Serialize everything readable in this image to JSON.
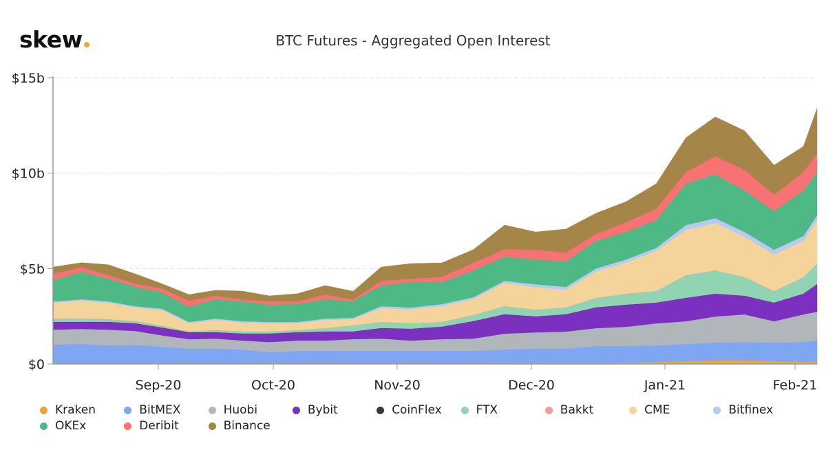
{
  "logo": {
    "text": "skew",
    "dot_color": "#e8a838"
  },
  "chart_data": {
    "type": "area",
    "stacked": true,
    "title": "BTC Futures - Aggregated Open Interest",
    "xlabel": "",
    "ylabel": "",
    "ylim": [
      0,
      15
    ],
    "y_unit": "$b",
    "y_ticks": [
      {
        "value": 0,
        "label": "$0"
      },
      {
        "value": 5,
        "label": "$5b"
      },
      {
        "value": 10,
        "label": "$10b"
      },
      {
        "value": 15,
        "label": "$15b"
      }
    ],
    "x_ticks": [
      {
        "date": "2020-09-01",
        "label": "Sep-20"
      },
      {
        "date": "2020-10-01",
        "label": "Oct-20"
      },
      {
        "date": "2020-11-01",
        "label": "Nov-20"
      },
      {
        "date": "2020-12-01",
        "label": "Dec-20"
      },
      {
        "date": "2021-01-01",
        "label": "Jan-21"
      },
      {
        "date": "2021-02-01",
        "label": "Feb-21"
      }
    ],
    "grid": "horizontal dashed",
    "legend_position": "bottom",
    "x": [
      "2020-08-05",
      "2020-08-12",
      "2020-08-19",
      "2020-08-26",
      "2020-09-02",
      "2020-09-09",
      "2020-09-16",
      "2020-09-23",
      "2020-09-30",
      "2020-10-07",
      "2020-10-14",
      "2020-10-21",
      "2020-10-28",
      "2020-11-04",
      "2020-11-11",
      "2020-11-18",
      "2020-11-25",
      "2020-12-02",
      "2020-12-09",
      "2020-12-16",
      "2020-12-23",
      "2020-12-30",
      "2021-01-06",
      "2021-01-13",
      "2021-01-20",
      "2021-01-27",
      "2021-02-03",
      "2021-02-06"
    ],
    "series": [
      {
        "name": "Kraken",
        "color": "#e8a838",
        "values": [
          0.04,
          0.04,
          0.04,
          0.04,
          0.04,
          0.04,
          0.04,
          0.04,
          0.04,
          0.04,
          0.04,
          0.04,
          0.04,
          0.04,
          0.04,
          0.04,
          0.05,
          0.05,
          0.06,
          0.06,
          0.08,
          0.1,
          0.15,
          0.2,
          0.2,
          0.15,
          0.12,
          0.13
        ]
      },
      {
        "name": "BitMEX",
        "color": "#7ea6f2",
        "values": [
          0.97,
          1.01,
          0.93,
          0.97,
          0.86,
          0.76,
          0.76,
          0.72,
          0.57,
          0.65,
          0.65,
          0.65,
          0.65,
          0.65,
          0.65,
          0.65,
          0.71,
          0.75,
          0.74,
          0.88,
          0.86,
          0.87,
          0.9,
          0.92,
          0.95,
          0.97,
          1.03,
          1.1
        ]
      },
      {
        "name": "Huobi",
        "color": "#b0b6ba",
        "values": [
          0.79,
          0.79,
          0.83,
          0.72,
          0.6,
          0.5,
          0.53,
          0.47,
          0.54,
          0.54,
          0.54,
          0.61,
          0.64,
          0.54,
          0.61,
          0.64,
          0.83,
          0.86,
          0.9,
          0.94,
          1.01,
          1.16,
          1.19,
          1.37,
          1.45,
          1.12,
          1.45,
          1.51
        ]
      },
      {
        "name": "Bybit",
        "color": "#7b30c0",
        "values": [
          0.4,
          0.36,
          0.4,
          0.4,
          0.4,
          0.36,
          0.33,
          0.36,
          0.44,
          0.43,
          0.47,
          0.4,
          0.55,
          0.61,
          0.65,
          0.91,
          1.01,
          0.83,
          0.9,
          1.08,
          1.15,
          1.08,
          1.22,
          1.19,
          0.97,
          0.97,
          1.08,
          1.44
        ]
      },
      {
        "name": "CoinFlex",
        "color": "#343a40",
        "values": [
          0.01,
          0.01,
          0.01,
          0.01,
          0.01,
          0.01,
          0.01,
          0.01,
          0.01,
          0.01,
          0.01,
          0.01,
          0.01,
          0.01,
          0.01,
          0.01,
          0.01,
          0.01,
          0.01,
          0.01,
          0.01,
          0.01,
          0.01,
          0.01,
          0.01,
          0.01,
          0.01,
          0.01
        ]
      },
      {
        "name": "FTX",
        "color": "#90d4b3",
        "values": [
          0.17,
          0.17,
          0.13,
          0.1,
          0.09,
          0.03,
          0.1,
          0.1,
          0.1,
          0.1,
          0.17,
          0.31,
          0.31,
          0.28,
          0.24,
          0.31,
          0.42,
          0.35,
          0.35,
          0.49,
          0.57,
          0.6,
          1.18,
          1.21,
          0.96,
          0.6,
          0.85,
          1.07
        ]
      },
      {
        "name": "Bakkt",
        "color": "#f59a9a",
        "values": [
          0.01,
          0.01,
          0.01,
          0.01,
          0.01,
          0.01,
          0.01,
          0.01,
          0.01,
          0.01,
          0.01,
          0.01,
          0.01,
          0.01,
          0.01,
          0.01,
          0.01,
          0.01,
          0.01,
          0.01,
          0.01,
          0.01,
          0.01,
          0.01,
          0.01,
          0.01,
          0.01,
          0.01
        ]
      },
      {
        "name": "CME",
        "color": "#f5d49b",
        "values": [
          0.82,
          0.93,
          0.86,
          0.71,
          0.82,
          0.42,
          0.53,
          0.46,
          0.42,
          0.35,
          0.42,
          0.32,
          0.72,
          0.72,
          0.83,
          0.83,
          1.22,
          1.17,
          0.92,
          1.39,
          1.64,
          2.11,
          2.37,
          2.48,
          2.12,
          1.91,
          1.91,
          2.27
        ]
      },
      {
        "name": "Bitfinex",
        "color": "#b3cbf5",
        "values": [
          0.07,
          0.07,
          0.07,
          0.07,
          0.07,
          0.07,
          0.07,
          0.07,
          0.07,
          0.07,
          0.07,
          0.07,
          0.1,
          0.1,
          0.1,
          0.1,
          0.1,
          0.15,
          0.15,
          0.15,
          0.15,
          0.15,
          0.25,
          0.25,
          0.25,
          0.25,
          0.25,
          0.25
        ]
      },
      {
        "name": "OKEx",
        "color": "#4fb985",
        "values": [
          1.12,
          1.44,
          1.19,
          1.01,
          0.85,
          0.8,
          1.01,
          1.04,
          0.9,
          0.94,
          1.01,
          0.86,
          1.08,
          1.33,
          1.15,
          1.4,
          1.27,
          1.3,
          1.33,
          1.44,
          1.44,
          1.45,
          2.17,
          2.31,
          2.17,
          2.02,
          2.38,
          2.27
        ]
      },
      {
        "name": "Deribit",
        "color": "#f77272",
        "values": [
          0.32,
          0.25,
          0.18,
          0.18,
          0.2,
          0.32,
          0.18,
          0.11,
          0.18,
          0.14,
          0.25,
          0.1,
          0.25,
          0.18,
          0.29,
          0.4,
          0.39,
          0.51,
          0.47,
          0.37,
          0.51,
          0.61,
          0.61,
          0.94,
          1.08,
          0.86,
          0.97,
          0.97
        ]
      },
      {
        "name": "Binance",
        "color": "#a68549",
        "values": [
          0.36,
          0.23,
          0.55,
          0.5,
          0.25,
          0.32,
          0.29,
          0.43,
          0.29,
          0.4,
          0.47,
          0.43,
          0.72,
          0.79,
          0.72,
          0.69,
          1.26,
          0.93,
          1.23,
          1.08,
          1.08,
          1.3,
          1.8,
          2.06,
          2.05,
          1.55,
          1.34,
          2.37
        ]
      }
    ]
  }
}
